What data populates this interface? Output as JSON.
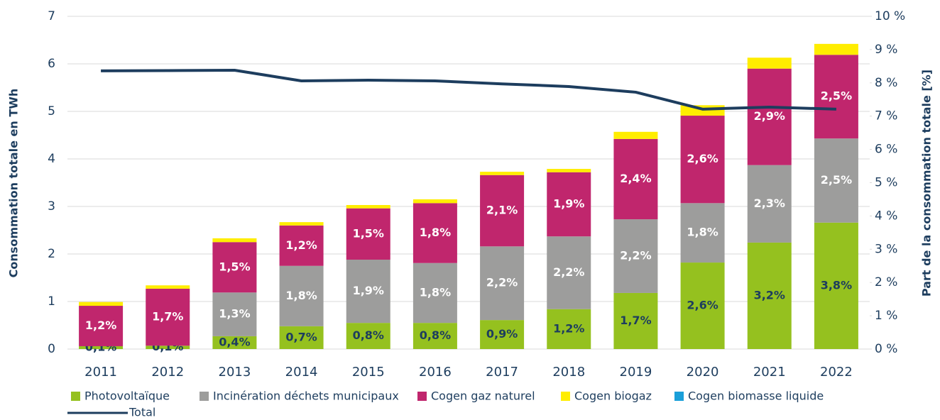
{
  "chart_data": {
    "type": "bar",
    "stacked": true,
    "y_label": "Consommation totale en TWh",
    "y2_label": "Part de la consommation totale [%]",
    "categories": [
      "2011",
      "2012",
      "2013",
      "2014",
      "2015",
      "2016",
      "2017",
      "2018",
      "2019",
      "2020",
      "2021",
      "2022"
    ],
    "ylim": [
      0,
      7
    ],
    "yticks": [
      0,
      1,
      2,
      3,
      4,
      5,
      6,
      7
    ],
    "y2lim": [
      0,
      10
    ],
    "y2ticks": [
      {
        "value": 0,
        "label": "0 %"
      },
      {
        "value": 1,
        "label": "1 %"
      },
      {
        "value": 2,
        "label": "2 %"
      },
      {
        "value": 3,
        "label": "3 %"
      },
      {
        "value": 4,
        "label": "4 %"
      },
      {
        "value": 5,
        "label": "5 %"
      },
      {
        "value": 6,
        "label": "6 %"
      },
      {
        "value": 7,
        "label": "7 %"
      },
      {
        "value": 8,
        "label": "8 %"
      },
      {
        "value": 9,
        "label": "9 %"
      },
      {
        "value": 10,
        "label": "10 %"
      }
    ],
    "grid": true,
    "series": [
      {
        "name": "Photovoltaïque",
        "color": "#95c11f",
        "label_color": "#1d3d5e",
        "values": [
          0.06,
          0.07,
          0.27,
          0.48,
          0.55,
          0.55,
          0.61,
          0.84,
          1.18,
          1.82,
          2.24,
          2.66
        ],
        "share_labels": [
          "0,1%",
          "0,1%",
          "0,4%",
          "0,7%",
          "0,8%",
          "0,8%",
          "0,9%",
          "1,2%",
          "1,7%",
          "2,6%",
          "3,2%",
          "3,8%"
        ]
      },
      {
        "name": "Incinération déchets municipaux",
        "color": "#9d9d9c",
        "label_color": "#ffffff",
        "values": [
          0,
          0,
          0.92,
          1.27,
          1.33,
          1.26,
          1.55,
          1.53,
          1.55,
          1.25,
          1.63,
          1.77
        ],
        "share_labels": [
          null,
          null,
          "1,3%",
          "1,8%",
          "1,9%",
          "1,8%",
          "2,2%",
          "2,2%",
          "2,2%",
          "1,8%",
          "2,3%",
          "2,5%"
        ]
      },
      {
        "name": "Cogen gaz naturel",
        "color": "#c0266d",
        "label_color": "#ffffff",
        "values": [
          0.85,
          1.2,
          1.06,
          0.85,
          1.08,
          1.26,
          1.5,
          1.35,
          1.69,
          1.84,
          2.03,
          1.76
        ],
        "share_labels": [
          "1,2%",
          "1,7%",
          "1,5%",
          "1,2%",
          "1,5%",
          "1,8%",
          "2,1%",
          "1,9%",
          "2,4%",
          "2,6%",
          "2,9%",
          "2,5%"
        ]
      },
      {
        "name": "Cogen biogaz",
        "color": "#ffed00",
        "values": [
          0.08,
          0.07,
          0.08,
          0.07,
          0.07,
          0.08,
          0.07,
          0.07,
          0.15,
          0.22,
          0.23,
          0.23
        ]
      },
      {
        "name": "Cogen biomasse liquide",
        "color": "#1a9fd9",
        "values": [
          0,
          0,
          0,
          0,
          0,
          0,
          0,
          0,
          0,
          0,
          0,
          0
        ]
      },
      {
        "name": "Total",
        "type": "line",
        "axis": "y2",
        "color": "#1d3d5e",
        "values": [
          8.36,
          8.37,
          8.38,
          8.06,
          8.08,
          8.06,
          7.97,
          7.89,
          7.72,
          7.21,
          7.27,
          7.21
        ]
      }
    ]
  }
}
